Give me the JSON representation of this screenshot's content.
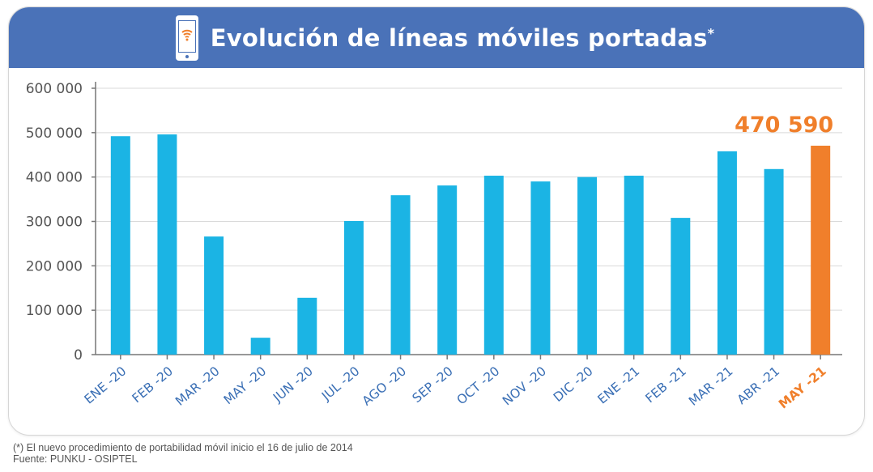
{
  "header": {
    "title": "Evolución de líneas móviles portadas",
    "title_marker": "*",
    "icon": "smartphone-wifi-icon"
  },
  "colors": {
    "header_bg": "#4a72b8",
    "bar": "#1bb4e4",
    "highlight": "#f07f2b",
    "axis_text": "#555555",
    "grid": "#d9d9d9"
  },
  "chart_data": {
    "type": "bar",
    "title": "Evolución de líneas móviles portadas*",
    "xlabel": "",
    "ylabel": "",
    "ylim": [
      0,
      600000
    ],
    "yticks": [
      0,
      100000,
      200000,
      300000,
      400000,
      500000,
      600000
    ],
    "ytick_labels": [
      "0",
      "100 000",
      "200 000",
      "300 000",
      "400 000",
      "500 000",
      "600 000"
    ],
    "grid": true,
    "categories": [
      "ENE -20",
      "FEB -20",
      "MAR -20",
      "MAY -20",
      "JUN -20",
      "JUL -20",
      "AGO -20",
      "SEP -20",
      "OCT -20",
      "NOV -20",
      "DIC -20",
      "ENE -21",
      "FEB -21",
      "MAR -21",
      "ABR -21",
      "MAY -21"
    ],
    "values": [
      492000,
      496000,
      266000,
      38000,
      128000,
      301000,
      359000,
      381000,
      403000,
      390000,
      400000,
      403000,
      308000,
      458000,
      418000,
      470590
    ],
    "highlight_index": 15,
    "annotations": [
      {
        "category": "MAY -21",
        "text": "470 590"
      }
    ]
  },
  "footnote": {
    "line1": "(*) El nuevo procedimiento de portabilidad móvil inicio el 16 de julio de 2014",
    "line2": "Fuente: PUNKU - OSIPTEL"
  }
}
